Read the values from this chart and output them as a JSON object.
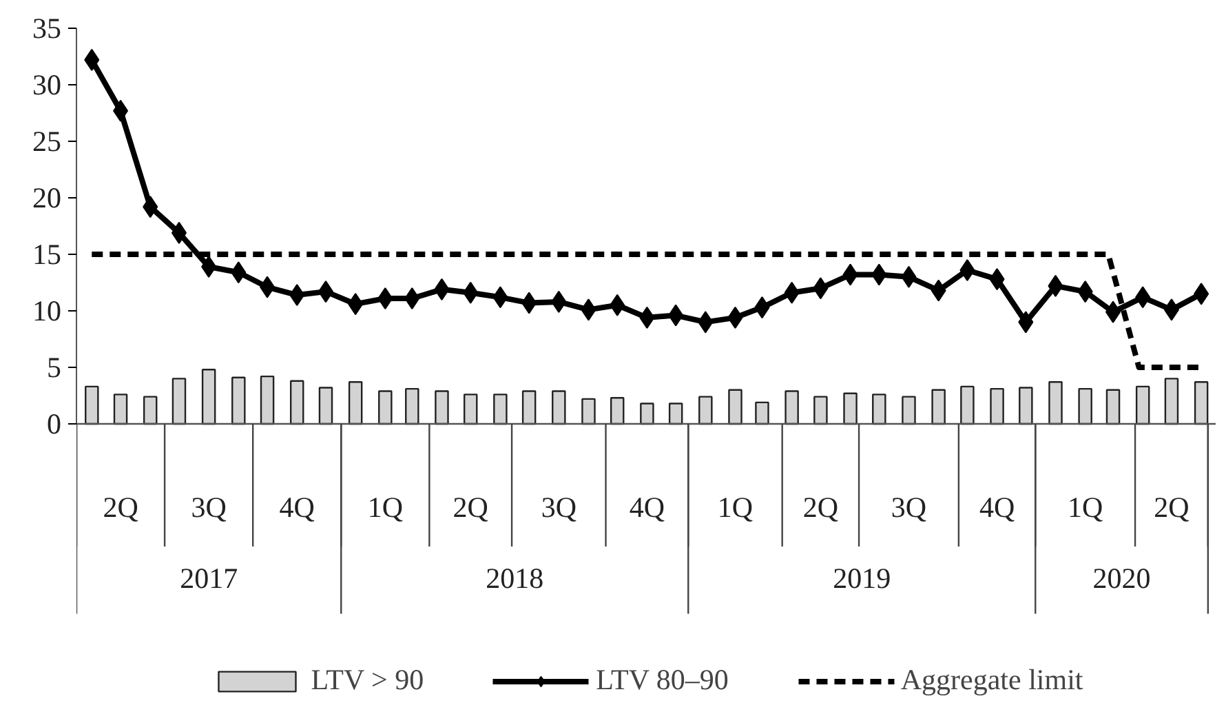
{
  "chart_data": {
    "type": "bar",
    "x": [
      "2017-04",
      "2017-05",
      "2017-06",
      "2017-07",
      "2017-08",
      "2017-09",
      "2017-10",
      "2017-11",
      "2017-12",
      "2018-01",
      "2018-02",
      "2018-03",
      "2018-04",
      "2018-05",
      "2018-06",
      "2018-07",
      "2018-08",
      "2018-09",
      "2018-10",
      "2018-11",
      "2018-12",
      "2019-01",
      "2019-02",
      "2019-03",
      "2019-04",
      "2019-05",
      "2019-06",
      "2019-07",
      "2019-08",
      "2019-09",
      "2019-10",
      "2019-11",
      "2019-12",
      "2020-01",
      "2020-02",
      "2020-03",
      "2020-04",
      "2020-05",
      "2020-06"
    ],
    "xlim": [
      "2017-03-16",
      "2020-06-16"
    ],
    "xticks": [
      {
        "value": "2017-05",
        "label": "2Q"
      },
      {
        "value": "2017-08",
        "label": "3Q"
      },
      {
        "value": "2017-11",
        "label": "4Q"
      },
      {
        "value": "2018-02",
        "label": "1Q"
      },
      {
        "value": "2018-05",
        "label": "2Q"
      },
      {
        "value": "2018-08",
        "label": "3Q"
      },
      {
        "value": "2018-11",
        "label": "4Q"
      },
      {
        "value": "2019-02",
        "label": "1Q"
      },
      {
        "value": "2019-05",
        "label": "2Q"
      },
      {
        "value": "2019-08",
        "label": "3Q"
      },
      {
        "value": "2019-11",
        "label": "4Q"
      },
      {
        "value": "2020-02",
        "label": "1Q"
      },
      {
        "value": "2020-05",
        "label": "2Q"
      }
    ],
    "ylim": [
      0,
      35
    ],
    "yticks": [
      0,
      5,
      10,
      15,
      20,
      25,
      30,
      35
    ],
    "series": [
      {
        "name": "LTV > 90",
        "color": "#d3d3d3",
        "values": [
          3.3,
          2.6,
          2.4,
          4.0,
          4.8,
          4.1,
          4.2,
          3.8,
          3.2,
          3.7,
          2.9,
          3.1,
          2.9,
          2.6,
          2.6,
          2.9,
          2.9,
          2.2,
          2.3,
          1.8,
          1.8,
          2.4,
          3.0,
          1.9,
          2.9,
          2.4,
          2.7,
          2.6,
          2.4,
          3.0,
          3.3,
          3.1,
          3.2,
          3.7,
          3.1,
          3.0,
          3.3,
          4.0,
          3.7
        ]
      },
      {
        "name": "LTV 80–90",
        "type": "line",
        "color": "#000000",
        "marker": "diamond",
        "line_style": "solid",
        "values": [
          32.2,
          27.7,
          19.2,
          16.9,
          13.9,
          13.4,
          12.1,
          11.4,
          11.7,
          10.6,
          11.1,
          11.1,
          11.9,
          11.6,
          11.2,
          10.7,
          10.8,
          10.1,
          10.5,
          9.4,
          9.6,
          9.0,
          9.4,
          10.3,
          11.6,
          12.0,
          13.2,
          13.2,
          13.0,
          11.8,
          13.6,
          12.8,
          9.0,
          12.2,
          11.7,
          9.9,
          11.2,
          10.1,
          11.5
        ]
      },
      {
        "name": "Aggregate limit",
        "type": "line",
        "color": "#000000",
        "line_style": "dashed",
        "x": [
          "2017-04",
          "2020-02-25",
          "2020-03-28",
          "2020-06"
        ],
        "values": [
          15,
          15,
          5,
          5
        ]
      }
    ],
    "annotations": [
      "2017",
      "2018",
      "2019",
      "2020"
    ],
    "legend": "bottom",
    "grid": false
  }
}
